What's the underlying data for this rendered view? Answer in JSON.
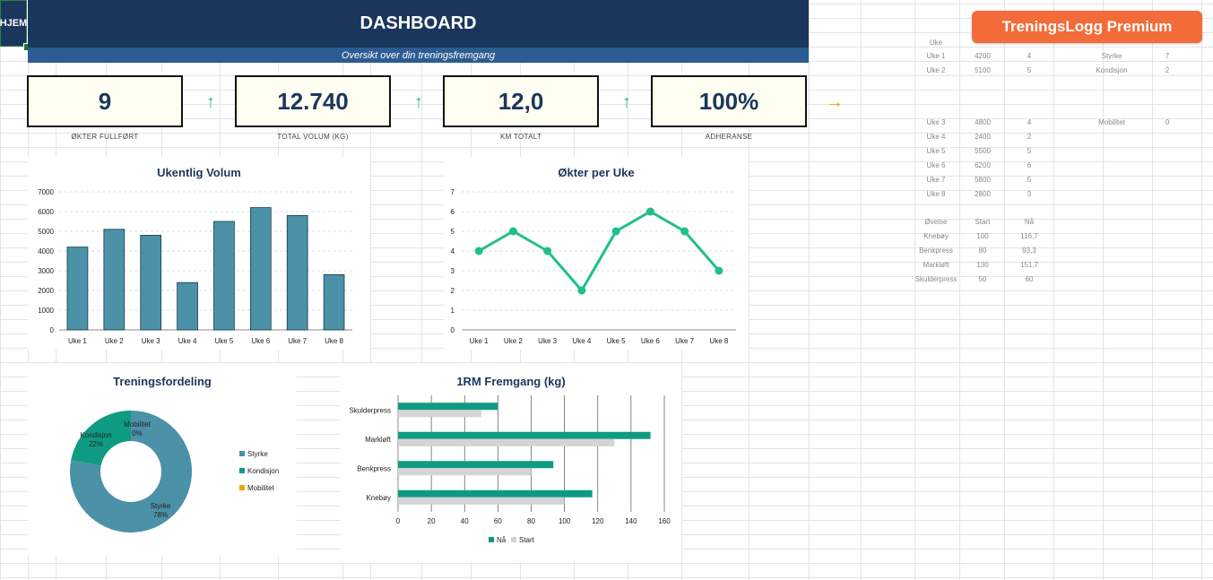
{
  "header": {
    "home_label": "HJEM",
    "title": "DASHBOARD",
    "subtitle": "Oversikt over din treningsfremgang",
    "premium_label": "TreningsLogg Premium"
  },
  "colors": {
    "navy": "#1b365d",
    "blue": "#2c5d92",
    "teal_bar": "#4b91a8",
    "green": "#1fbf8a",
    "orange": "#f26b38",
    "teal_dark": "#0f9b82",
    "amber": "#f0a500"
  },
  "kpis": [
    {
      "value": "9",
      "label": "ØKTER FULLFØRT",
      "trend": "arrow-up-icon",
      "trend_glyph": "↑",
      "trend_color": "#1fbf8a"
    },
    {
      "value": "12.740",
      "label": "TOTAL VOLUM (KG)",
      "trend": "arrow-up-icon",
      "trend_glyph": "↑",
      "trend_color": "#1fbf8a"
    },
    {
      "value": "12,0",
      "label": "KM TOTALT",
      "trend": "arrow-up-icon",
      "trend_glyph": "↑",
      "trend_color": "#1fbf8a"
    },
    {
      "value": "100%",
      "label": "ADHERANSE",
      "trend": "arrow-right-icon",
      "trend_glyph": "→",
      "trend_color": "#f0a500"
    }
  ],
  "chart_data": [
    {
      "type": "bar",
      "title": "Ukentlig Volum",
      "categories": [
        "Uke 1",
        "Uke 2",
        "Uke 3",
        "Uke 4",
        "Uke 5",
        "Uke 6",
        "Uke 7",
        "Uke 8"
      ],
      "values": [
        4200,
        5100,
        4800,
        2400,
        5500,
        6200,
        5800,
        2800
      ],
      "ylim": [
        0,
        7000
      ],
      "yticks": [
        0,
        1000,
        2000,
        3000,
        4000,
        5000,
        6000,
        7000
      ],
      "grid": true
    },
    {
      "type": "line",
      "title": "Økter per Uke",
      "categories": [
        "Uke 1",
        "Uke 2",
        "Uke 3",
        "Uke 4",
        "Uke 5",
        "Uke 6",
        "Uke 7",
        "Uke 8"
      ],
      "values": [
        4,
        5,
        4,
        2,
        5,
        6,
        5,
        3
      ],
      "ylim": [
        0,
        7
      ],
      "yticks": [
        0,
        1,
        2,
        3,
        4,
        5,
        6,
        7
      ],
      "grid": true
    },
    {
      "type": "pie",
      "title": "Treningsfordeling",
      "slices": [
        {
          "label": "Styrke",
          "value": 78,
          "pct_label": "78%",
          "color": "#4b91a8"
        },
        {
          "label": "Kondisjon",
          "value": 22,
          "pct_label": "22%",
          "color": "#0f9b82"
        },
        {
          "label": "Mobilitet",
          "value": 0,
          "pct_label": "0%",
          "color": "#f0a500"
        }
      ],
      "legend": "right"
    },
    {
      "type": "bar",
      "orientation": "horizontal",
      "title": "1RM Fremgang (kg)",
      "categories": [
        "Knebøy",
        "Benkpress",
        "Markløft",
        "Skulderpress"
      ],
      "series": [
        {
          "name": "Nå",
          "values": [
            116.7,
            93.3,
            151.7,
            60
          ],
          "color": "#0f9b82"
        },
        {
          "name": "Start",
          "values": [
            100,
            80,
            130,
            50
          ],
          "color": "#d4d4d4"
        }
      ],
      "xlim": [
        0,
        160
      ],
      "xticks": [
        0,
        20,
        40,
        60,
        80,
        100,
        120,
        140,
        160
      ],
      "legend": "bottom",
      "grid": true
    }
  ],
  "side_table": {
    "weeks_header": [
      "Uke",
      "",
      ""
    ],
    "weeks": [
      [
        "Uke 1",
        "4200",
        "4"
      ],
      [
        "Uke 2",
        "5100",
        "5"
      ],
      [
        "Uke 3",
        "4800",
        "4"
      ],
      [
        "Uke 4",
        "2400",
        "2"
      ],
      [
        "Uke 5",
        "5500",
        "5"
      ],
      [
        "Uke 6",
        "6200",
        "6"
      ],
      [
        "Uke 7",
        "5800",
        "5"
      ],
      [
        "Uke 8",
        "2800",
        "3"
      ]
    ],
    "types": [
      [
        "Styrke",
        "7"
      ],
      [
        "Kondisjon",
        "2"
      ],
      [
        "Mobilitet",
        "0"
      ]
    ],
    "lifts_header": [
      "Øvelse",
      "Start",
      "Nå"
    ],
    "lifts": [
      [
        "Knebøy",
        "100",
        "116,7"
      ],
      [
        "Benkpress",
        "80",
        "93,3"
      ],
      [
        "Markløft",
        "130",
        "151,7"
      ],
      [
        "Skulderpress",
        "50",
        "60"
      ]
    ]
  }
}
